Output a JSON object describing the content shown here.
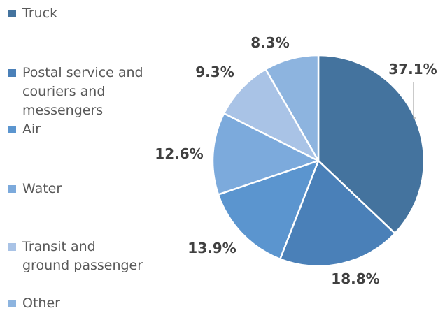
{
  "chart_data": {
    "type": "pie",
    "categories": [
      "Truck",
      "Postal service and couriers and messengers",
      "Air",
      "Water",
      "Transit and ground passenger",
      "Other"
    ],
    "values": [
      37.1,
      18.8,
      13.9,
      12.6,
      9.3,
      8.3
    ],
    "data_labels": [
      "37.1%",
      "18.8%",
      "13.9%",
      "12.6%",
      "9.3%",
      "8.3%"
    ],
    "colors": [
      "#44739e",
      "#4a80b8",
      "#5b95cf",
      "#7caadc",
      "#a9c3e6",
      "#8db4df"
    ],
    "legend": {
      "placement": "left",
      "items": [
        {
          "label": "Truck",
          "color": "#44739e"
        },
        {
          "label": "Postal service and\ncouriers and\nmessengers",
          "color": "#4a80b8"
        },
        {
          "label": "Air",
          "color": "#5b95cf"
        },
        {
          "label": "Water",
          "color": "#7caadc"
        },
        {
          "label": "Transit and\nground passenger",
          "color": "#a9c3e6"
        },
        {
          "label": "Other",
          "color": "#8db4df"
        }
      ]
    },
    "start_angle_deg": 0,
    "direction": "clockwise"
  }
}
